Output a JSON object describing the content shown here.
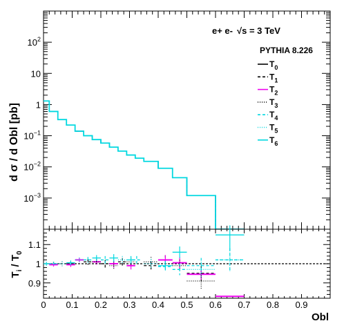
{
  "chart_data": {
    "type": "line",
    "step": true,
    "log_y": true,
    "process": {
      "beams": "e+ e-",
      "energy": "√s = 3 TeV",
      "color": "#0000cc"
    },
    "generator": "PYTHIA 8.226",
    "xlabel": "Obl",
    "ylabel": "d σ / d Obl [pb]",
    "ratio_ylabel": "T_i / T_0",
    "xlim": [
      0,
      1
    ],
    "ylim": [
      0.0001,
      1000
    ],
    "ratio_ylim": [
      0.82,
      1.18
    ],
    "x_ticks": [
      "0",
      "0.1",
      "0.2",
      "0.3",
      "0.4",
      "0.5",
      "0.6",
      "0.7",
      "0.8",
      "0.9"
    ],
    "y_ticks": [
      {
        "value": 0.001,
        "base": "10",
        "exp": "−3"
      },
      {
        "value": 0.01,
        "base": "10",
        "exp": "−2"
      },
      {
        "value": 0.1,
        "base": "10",
        "exp": "−1"
      },
      {
        "value": 1,
        "base": "1",
        "exp": ""
      },
      {
        "value": 10,
        "base": "10",
        "exp": ""
      },
      {
        "value": 100,
        "base": "10",
        "exp": "2"
      }
    ],
    "ratio_ticks": [
      "0.9",
      "1",
      "1.1"
    ],
    "bin_edges": [
      0,
      0.02,
      0.05,
      0.08,
      0.11,
      0.14,
      0.17,
      0.2,
      0.23,
      0.26,
      0.29,
      0.32,
      0.35,
      0.4,
      0.45,
      0.5,
      0.6,
      0.7
    ],
    "values": [
      1.3,
      0.6,
      0.33,
      0.22,
      0.14,
      0.1,
      0.075,
      0.058,
      0.043,
      0.032,
      0.024,
      0.019,
      0.015,
      0.009,
      0.0045,
      0.0012,
      5e-05
    ],
    "series": [
      {
        "name": "T",
        "sub": "0",
        "color": "#000000",
        "dash": ""
      },
      {
        "name": "T",
        "sub": "1",
        "color": "#000000",
        "dash": "4,3"
      },
      {
        "name": "T",
        "sub": "2",
        "color": "#ee00ee",
        "dash": ""
      },
      {
        "name": "T",
        "sub": "3",
        "color": "#000000",
        "dash": "1,2"
      },
      {
        "name": "T",
        "sub": "4",
        "color": "#00d8e0",
        "dash": "4,3"
      },
      {
        "name": "T",
        "sub": "5",
        "color": "#00d8e0",
        "dash": "1,2"
      },
      {
        "name": "T",
        "sub": "6",
        "color": "#00d8e0",
        "dash": ""
      }
    ],
    "ratio_series": [
      {
        "series": "T1",
        "color": "#000000",
        "dash": "4,3",
        "points": [
          {
            "x": 0.035,
            "y": 1.0,
            "err": 0.01
          },
          {
            "x": 0.095,
            "y": 1.0,
            "err": 0.012
          },
          {
            "x": 0.155,
            "y": 1.01,
            "err": 0.015
          },
          {
            "x": 0.215,
            "y": 1.0,
            "err": 0.02
          },
          {
            "x": 0.275,
            "y": 1.01,
            "err": 0.02
          },
          {
            "x": 0.375,
            "y": 0.99,
            "err": 0.02
          },
          {
            "x": 0.425,
            "y": 1.02,
            "err": 0.025
          },
          {
            "x": 0.55,
            "y": 0.95,
            "err": 0.04
          }
        ]
      },
      {
        "series": "T2",
        "color": "#ee00ee",
        "dash": "",
        "points": [
          {
            "x": 0.035,
            "y": 0.995,
            "err": 0.01
          },
          {
            "x": 0.095,
            "y": 0.995,
            "err": 0.012
          },
          {
            "x": 0.125,
            "y": 1.02,
            "err": 0.012
          },
          {
            "x": 0.185,
            "y": 1.01,
            "err": 0.015
          },
          {
            "x": 0.245,
            "y": 1.0,
            "err": 0.02
          },
          {
            "x": 0.305,
            "y": 0.99,
            "err": 0.02
          },
          {
            "x": 0.425,
            "y": 1.02,
            "err": 0.025
          },
          {
            "x": 0.475,
            "y": 1.005,
            "err": 0.03
          },
          {
            "x": 0.55,
            "y": 0.945,
            "err": 0.03
          },
          {
            "x": 0.65,
            "y": 0.83,
            "err": 0.0
          }
        ]
      },
      {
        "series": "T3",
        "color": "#000000",
        "dash": "1,2",
        "points": [
          {
            "x": 0.065,
            "y": 1.0,
            "err": 0.012
          },
          {
            "x": 0.185,
            "y": 1.01,
            "err": 0.015
          },
          {
            "x": 0.245,
            "y": 0.99,
            "err": 0.02
          },
          {
            "x": 0.305,
            "y": 1.01,
            "err": 0.02
          },
          {
            "x": 0.375,
            "y": 1.01,
            "err": 0.025
          },
          {
            "x": 0.475,
            "y": 0.99,
            "err": 0.03
          },
          {
            "x": 0.55,
            "y": 0.91,
            "err": 0.04
          }
        ]
      },
      {
        "series": "T4",
        "color": "#00d8e0",
        "dash": "4,3",
        "points": [
          {
            "x": 0.035,
            "y": 1.0,
            "err": 0.01
          },
          {
            "x": 0.155,
            "y": 1.02,
            "err": 0.015
          },
          {
            "x": 0.215,
            "y": 1.02,
            "err": 0.02
          },
          {
            "x": 0.325,
            "y": 1.02,
            "err": 0.02
          },
          {
            "x": 0.425,
            "y": 0.985,
            "err": 0.025
          },
          {
            "x": 0.475,
            "y": 0.97,
            "err": 0.03
          },
          {
            "x": 0.55,
            "y": 0.99,
            "err": 0.04
          },
          {
            "x": 0.65,
            "y": 1.02,
            "err": 0.06
          }
        ]
      },
      {
        "series": "T5",
        "color": "#00d8e0",
        "dash": "1,2",
        "points": [
          {
            "x": 0.065,
            "y": 1.0,
            "err": 0.012
          },
          {
            "x": 0.125,
            "y": 1.02,
            "err": 0.012
          },
          {
            "x": 0.275,
            "y": 1.02,
            "err": 0.02
          },
          {
            "x": 0.375,
            "y": 1.0,
            "err": 0.025
          },
          {
            "x": 0.55,
            "y": 0.97,
            "err": 0.04
          },
          {
            "x": 0.65,
            "y": 1.02,
            "err": 0.06
          }
        ]
      },
      {
        "series": "T6",
        "color": "#00d8e0",
        "dash": "",
        "points": [
          {
            "x": 0.01,
            "y": 1.0,
            "err": 0.01
          },
          {
            "x": 0.095,
            "y": 1.005,
            "err": 0.012
          },
          {
            "x": 0.185,
            "y": 1.03,
            "err": 0.015
          },
          {
            "x": 0.245,
            "y": 1.03,
            "err": 0.02
          },
          {
            "x": 0.305,
            "y": 1.02,
            "err": 0.02
          },
          {
            "x": 0.425,
            "y": 0.99,
            "err": 0.025
          },
          {
            "x": 0.475,
            "y": 1.06,
            "err": 0.03
          },
          {
            "x": 0.65,
            "y": 1.15,
            "err": 0.08
          }
        ]
      }
    ]
  }
}
